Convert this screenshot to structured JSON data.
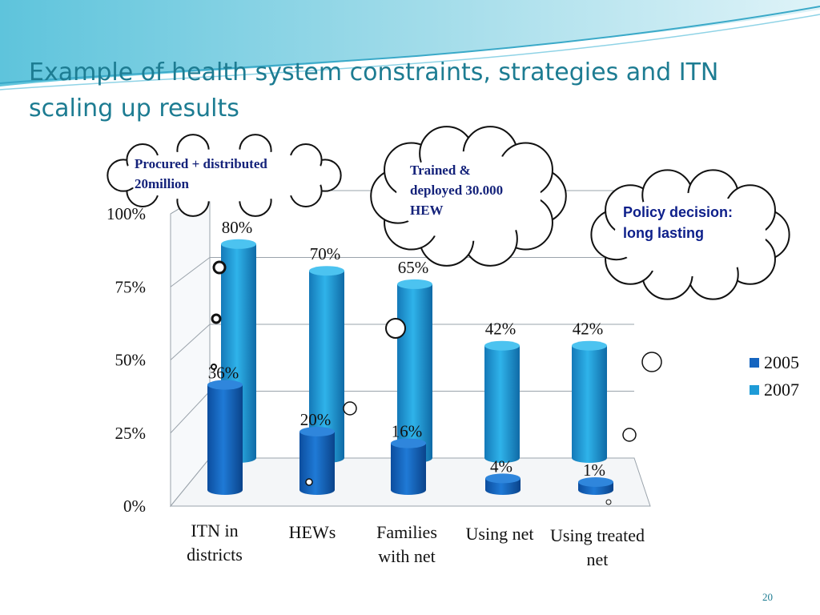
{
  "title": "Example of health system constraints, strategies and ITN scaling up results",
  "slide_number": "20",
  "callouts": [
    {
      "text": "Procured + distributed 20million"
    },
    {
      "text": "Trained & deployed 30.000 HEW"
    },
    {
      "text": "Policy decision: long lasting"
    }
  ],
  "category_labels": [
    "ITN in districts",
    "HEWs",
    "Families with net",
    "Using net",
    "Using treated net"
  ],
  "colors": {
    "series_2005": "#1565c0",
    "series_2007": "#1e9bd7",
    "title": "#1d7c92",
    "callout_text": "#14227a"
  },
  "chart_data": {
    "type": "bar",
    "categories": [
      "ITN in districts",
      "HEWs",
      "Families with net",
      "Using net",
      "Using treated net"
    ],
    "series": [
      {
        "name": "2005",
        "values": [
          36,
          20,
          16,
          4,
          1
        ],
        "labels": [
          "36%",
          "20%",
          "16%",
          "4%",
          "1%"
        ]
      },
      {
        "name": "2007",
        "values": [
          80,
          70,
          65,
          42,
          42
        ],
        "labels": [
          "80%",
          "70%",
          "65%",
          "42%",
          "42%"
        ]
      }
    ],
    "yticks": [
      "0%",
      "25%",
      "50%",
      "75%",
      "100%"
    ],
    "ylim": [
      0,
      100
    ],
    "legend": "right",
    "grid": true
  }
}
